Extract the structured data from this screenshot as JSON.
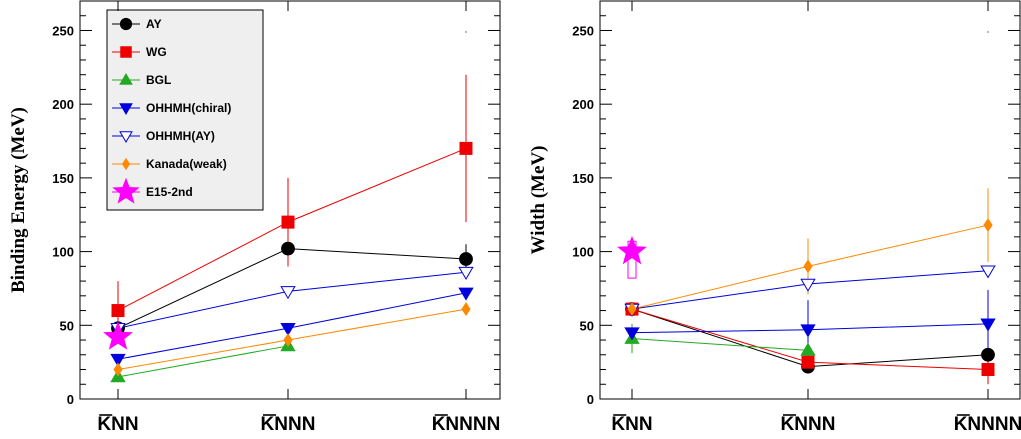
{
  "chart_data": [
    {
      "type": "line",
      "xlabel": "",
      "ylabel": "Binding Energy (MeV)",
      "categories": [
        "KNN",
        "KNNN",
        "KNNNN"
      ],
      "ylim": [
        0,
        270
      ],
      "yticks": [
        0,
        50,
        100,
        150,
        200,
        250
      ],
      "grid": false,
      "legend_position": "top-left",
      "series": [
        {
          "name": "AY",
          "color": "#000000",
          "marker": "circle",
          "filled": true,
          "values": [
            48,
            102,
            95
          ],
          "err": [
            null,
            12,
            10
          ]
        },
        {
          "name": "WG",
          "color": "#ee0000",
          "marker": "square",
          "filled": true,
          "values": [
            60,
            120,
            170
          ],
          "err": [
            20,
            30,
            50
          ]
        },
        {
          "name": "BGL",
          "color": "#22aa22",
          "marker": "triangle-up",
          "filled": true,
          "values": [
            15,
            36,
            null
          ],
          "err": [
            null,
            null,
            null
          ]
        },
        {
          "name": "OHHMH(chiral)",
          "color": "#0000dd",
          "marker": "triangle-down",
          "filled": true,
          "values": [
            27,
            48,
            72
          ],
          "err": [
            null,
            null,
            null
          ]
        },
        {
          "name": "OHHMH(AY)",
          "color": "#0000dd",
          "marker": "triangle-down",
          "filled": false,
          "values": [
            48,
            73,
            86
          ],
          "err": [
            null,
            null,
            null
          ]
        },
        {
          "name": "Kanada(weak)",
          "color": "#ff8800",
          "marker": "diamond",
          "filled": true,
          "values": [
            20,
            40,
            61
          ],
          "err": [
            null,
            null,
            null
          ]
        },
        {
          "name": "E15-2nd",
          "color": "#ff00ff",
          "marker": "star",
          "filled": true,
          "values": [
            42,
            null,
            null
          ],
          "err": [
            null,
            null,
            null
          ],
          "box": null
        }
      ]
    },
    {
      "type": "line",
      "xlabel": "",
      "ylabel": "Width (MeV)",
      "categories": [
        "KNN",
        "KNNN",
        "KNNNN"
      ],
      "ylim": [
        0,
        270
      ],
      "yticks": [
        0,
        50,
        100,
        150,
        200,
        250
      ],
      "grid": false,
      "legend_position": "none",
      "series": [
        {
          "name": "AY",
          "color": "#000000",
          "marker": "circle",
          "filled": true,
          "values": [
            61,
            22,
            30
          ],
          "err": [
            null,
            null,
            null
          ]
        },
        {
          "name": "WG",
          "color": "#ee0000",
          "marker": "square",
          "filled": true,
          "values": [
            61,
            25,
            20
          ],
          "err": [
            null,
            null,
            10
          ]
        },
        {
          "name": "BGL",
          "color": "#22aa22",
          "marker": "triangle-up",
          "filled": true,
          "values": [
            41,
            33,
            null
          ],
          "err": [
            10,
            null,
            null
          ]
        },
        {
          "name": "OHHMH(chiral)",
          "color": "#0000dd",
          "marker": "triangle-down",
          "filled": true,
          "values": [
            45,
            47,
            51
          ],
          "err": [
            null,
            20,
            23
          ]
        },
        {
          "name": "OHHMH(AY)",
          "color": "#0000dd",
          "marker": "triangle-down",
          "filled": false,
          "values": [
            61,
            78,
            87
          ],
          "err": [
            null,
            null,
            null
          ]
        },
        {
          "name": "Kanada(weak)",
          "color": "#ff8800",
          "marker": "diamond",
          "filled": true,
          "values": [
            61,
            90,
            118
          ],
          "err": [
            null,
            19,
            25
          ]
        },
        {
          "name": "E15-2nd",
          "color": "#ff00ff",
          "marker": "star",
          "filled": true,
          "values": [
            100,
            null,
            null
          ],
          "err": [
            null,
            null,
            null
          ],
          "box": [
            82,
            107
          ]
        }
      ]
    }
  ]
}
